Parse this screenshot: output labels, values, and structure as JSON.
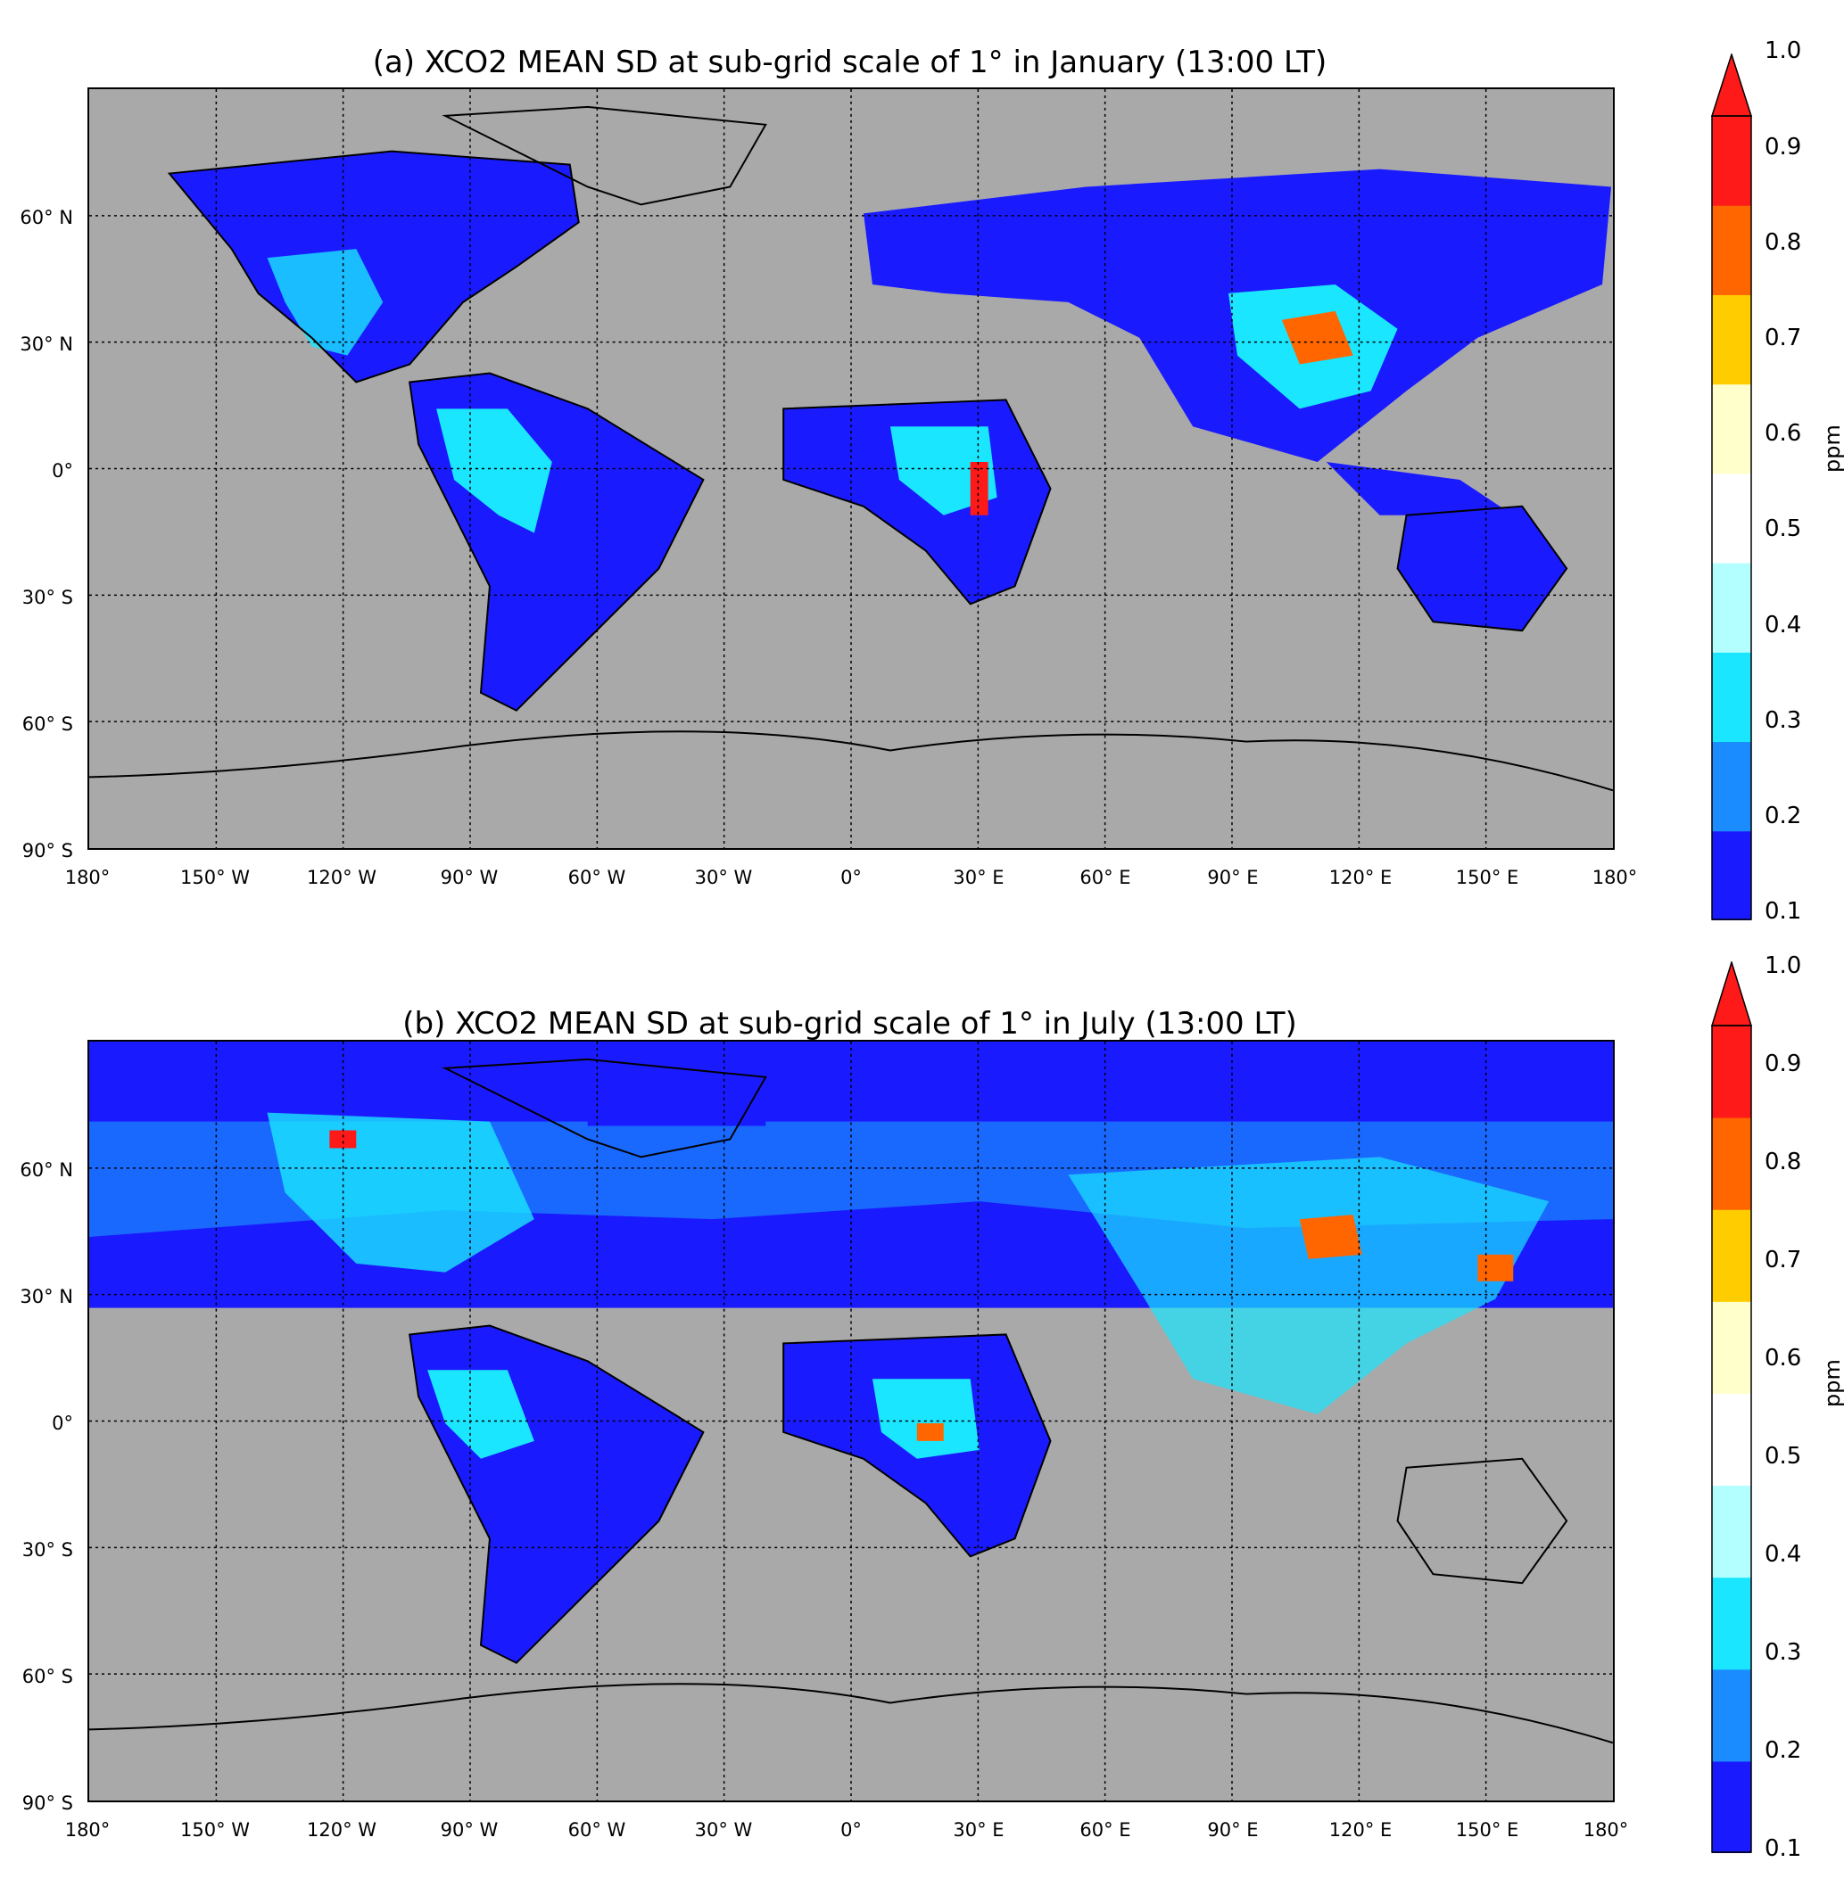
{
  "panels": [
    {
      "title": "(a) XCO2 MEAN SD at sub-grid scale of 1° in January (13:00 LT)",
      "month": "January"
    },
    {
      "title": "(b) XCO2 MEAN SD at sub-grid scale of 1° in July (13:00 LT)",
      "month": "July"
    }
  ],
  "axes": {
    "y_labels": [
      "60° N",
      "30° N",
      "0°",
      "30° S",
      "60° S",
      "90° S"
    ],
    "x_labels": [
      "180°",
      "150° W",
      "120° W",
      "90° W",
      "60° W",
      "30° W",
      "0°",
      "30° E",
      "60° E",
      "90° E",
      "120° E",
      "150° E",
      "180°"
    ]
  },
  "colorbar": {
    "unit": "ppm",
    "ticks": [
      "1.0",
      "0.9",
      "0.8",
      "0.7",
      "0.6",
      "0.5",
      "0.4",
      "0.3",
      "0.2",
      "0.1"
    ],
    "colors": [
      "#1a1aff",
      "#1a8cff",
      "#1ae6ff",
      "#b3ffff",
      "#ffffff",
      "#ffffcc",
      "#ffcc00",
      "#ff6600",
      "#ff1a1a"
    ],
    "extend": "max"
  },
  "map_colors": {
    "ocean_background": "#a9a9a9",
    "low": "#1a1aff",
    "mid": "#1ae6ff",
    "high": "#ff1a1a"
  }
}
